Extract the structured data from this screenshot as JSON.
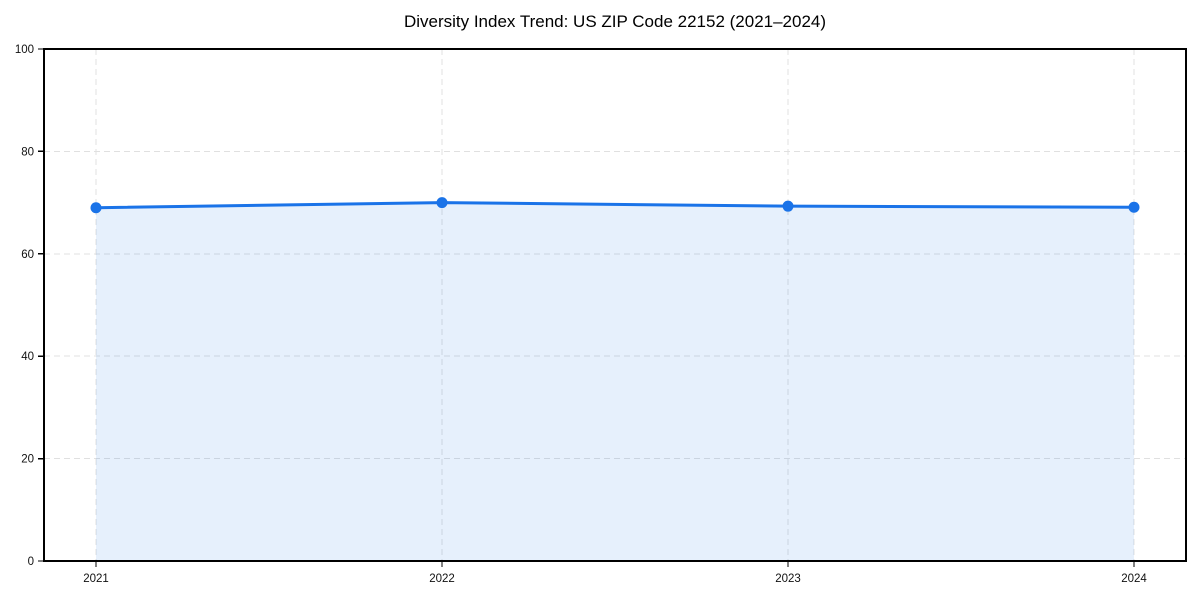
{
  "chart_data": {
    "type": "line",
    "title": "Diversity Index Trend: US ZIP Code 22152 (2021–2024)",
    "categories": [
      "2021",
      "2022",
      "2023",
      "2024"
    ],
    "series": [
      {
        "name": "Diversity Index",
        "values": [
          69.0,
          70.0,
          69.3,
          69.1
        ]
      }
    ],
    "xlabel": "",
    "ylabel": "",
    "ylim": [
      0,
      100
    ],
    "yticks": [
      0,
      20,
      40,
      60,
      80,
      100
    ],
    "ytick_labels": [
      "0",
      "20",
      "40",
      "60",
      "80",
      "100"
    ],
    "grid": true,
    "grid_style": "dashed",
    "legend": "none",
    "area_fill": true,
    "colors": {
      "line": "#1a73e8",
      "marker": "#1a73e8",
      "area_fill": "rgba(26,115,232,0.11)",
      "grid": "#e0e0e0",
      "spine": "#000000",
      "tick_text": "#111111",
      "background": "#ffffff"
    }
  }
}
